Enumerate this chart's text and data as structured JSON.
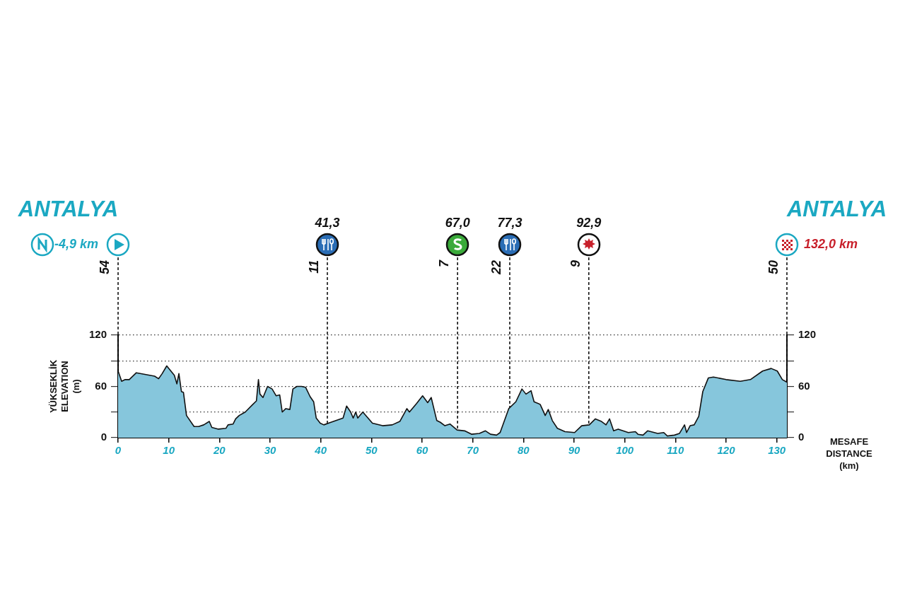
{
  "chart_data": {
    "type": "area",
    "ylabel": "YÜKSEKLİK\nELEVATION\n(m)",
    "xlabel": "MESAFE\nDISTANCE\n(km)",
    "xlim": [
      0,
      132
    ],
    "xticks": [
      0,
      10,
      20,
      30,
      40,
      50,
      60,
      70,
      80,
      90,
      100,
      110,
      120,
      130
    ],
    "ylim": [
      0,
      120
    ],
    "yticks": [
      0,
      {
        "value": 30,
        "label": null
      },
      60,
      {
        "value": 90,
        "label": null
      },
      120
    ],
    "y2lim": [
      0,
      120
    ],
    "y2ticks": [
      0,
      {
        "value": 30,
        "label": null
      },
      60,
      {
        "value": 90,
        "label": null
      },
      120
    ],
    "grid": "y",
    "legend": false,
    "marker": "none",
    "series": [
      {
        "color": "#86c6dc",
        "x": [
          0,
          0.7,
          1.4,
          2.2,
          3.6,
          7.2,
          8,
          8.7,
          9.6,
          11.1,
          11.6,
          12,
          12.5,
          12.9,
          13.5,
          15,
          15.9,
          16.9,
          18,
          18.5,
          19.8,
          21.3,
          21.7,
          22.7,
          23.2,
          23.9,
          25.1,
          26.6,
          27.3,
          27.7,
          28,
          28.6,
          29.5,
          30.4,
          31.2,
          31.9,
          32.4,
          33.1,
          33.9,
          34.5,
          35.3,
          36.2,
          37,
          37.9,
          38.6,
          39.1,
          39.9,
          40.6,
          42,
          44.4,
          45.1,
          45.9,
          46.4,
          46.9,
          47.3,
          48.3,
          50.2,
          52.2,
          54.1,
          55.6,
          57,
          57.5,
          58.9,
          60.1,
          61.1,
          61.8,
          62.9,
          63.6,
          64.5,
          65.5,
          66.9,
          68.4,
          69.8,
          71.3,
          72.5,
          73.5,
          74.7,
          75.4,
          77.1,
          78.5,
          79.7,
          80.5,
          81.5,
          82.1,
          83.3,
          84.3,
          84.9,
          85.7,
          86.7,
          88.2,
          90.1,
          91.5,
          93,
          94.2,
          95.4,
          96.3,
          97,
          97.8,
          98.7,
          100.7,
          102.1,
          102.6,
          103.6,
          104.5,
          106.5,
          107.7,
          108.4,
          109.8,
          110.8,
          111.8,
          112.2,
          112.9,
          113.7,
          114.6,
          115.4,
          116.5,
          117.5,
          120,
          122.8,
          124.8,
          127.2,
          128.9,
          130.1,
          131.1,
          132
        ],
        "values": [
          78,
          66,
          68,
          68,
          76,
          72,
          69,
          75,
          84,
          73,
          63,
          75,
          54,
          53,
          26,
          13,
          13,
          15,
          19,
          12,
          10,
          11,
          15,
          16,
          22,
          26,
          30,
          39,
          43,
          68,
          51,
          47,
          60,
          57,
          49,
          50,
          30,
          34,
          33,
          57,
          60,
          60,
          59,
          48,
          42,
          23,
          17,
          15,
          18,
          23,
          37,
          30,
          23,
          30,
          23,
          30,
          17,
          14,
          15,
          19,
          34,
          30,
          40,
          49,
          41,
          47,
          20,
          18,
          14,
          16,
          9,
          8,
          4,
          5,
          8,
          4,
          3,
          6,
          34,
          42,
          57,
          51,
          55,
          42,
          39,
          26,
          33,
          20,
          11,
          7,
          6,
          14,
          15,
          22,
          19,
          15,
          22,
          8,
          10,
          6,
          7,
          4,
          3,
          8,
          5,
          6,
          2,
          3,
          5,
          15,
          6,
          14,
          15,
          25,
          54,
          70,
          71,
          68,
          66,
          68,
          78,
          81,
          78,
          68,
          65
        ]
      }
    ],
    "ref_lines": [
      {
        "axis": "x",
        "value": 0,
        "label": "-4,9 km",
        "line_style": "dashed"
      },
      {
        "axis": "x",
        "value": 41.3,
        "label": "41,3",
        "line_style": "dashed"
      },
      {
        "axis": "x",
        "value": 67,
        "label": "67,0",
        "line_style": "dashed"
      },
      {
        "axis": "x",
        "value": 77.3,
        "label": "77,3",
        "line_style": "dashed"
      },
      {
        "axis": "x",
        "value": 92.9,
        "label": "92,9",
        "line_style": "dashed"
      },
      {
        "axis": "x",
        "value": 132,
        "label": "132,0 km",
        "line_style": "dashed"
      }
    ],
    "annotations": [
      "ANTALYA",
      "ANTALYA",
      {
        "text": "54",
        "x": 0
      },
      {
        "text": "11",
        "x": 41.3
      },
      {
        "text": "7",
        "x": 67
      },
      {
        "text": "22",
        "x": 77.3
      },
      {
        "text": "9",
        "x": 92.9
      },
      {
        "text": "50",
        "x": 132
      }
    ]
  }
}
